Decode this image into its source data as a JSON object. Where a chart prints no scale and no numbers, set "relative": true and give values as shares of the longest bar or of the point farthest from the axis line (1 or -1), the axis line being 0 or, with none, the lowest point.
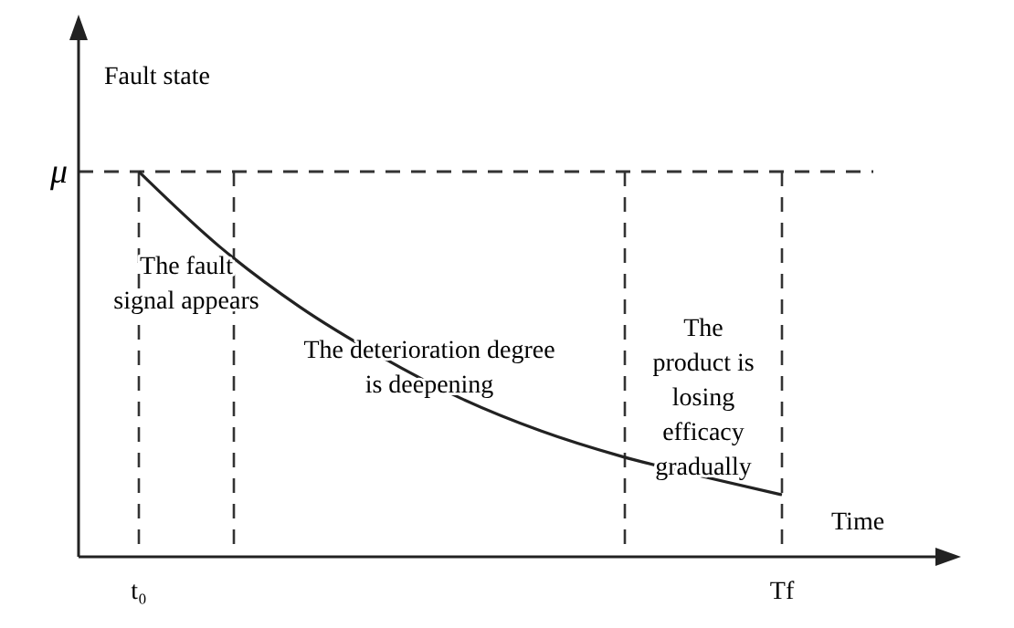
{
  "chart_data": {
    "type": "line",
    "relative": true,
    "xlabel": "Time",
    "ylabel": "Fault state",
    "categories": [
      "t₀",
      null,
      null,
      null,
      null,
      null,
      null,
      null,
      "Tf"
    ],
    "series": [
      {
        "color": "#222222",
        "values": [
          1,
          0.806,
          0.649,
          0.521,
          0.412,
          0.327,
          0.261,
          0.209,
          0.161
        ]
      }
    ],
    "ref_lines": [
      {
        "axis": "y",
        "value": 1,
        "label": "μ",
        "line_style": "dashed"
      },
      {
        "axis": "x",
        "value": "t₀",
        "line_style": "dashed"
      },
      {
        "axis": "x",
        "value": "Tf",
        "line_style": "dashed"
      }
    ],
    "annotations": [
      "The fault\nsignal appears",
      "The deterioration degree\nis deepening",
      "The\nproduct is\nlosing\nefficacy\ngradually"
    ],
    "grid": false,
    "marker": "none",
    "line_style": "solid"
  }
}
